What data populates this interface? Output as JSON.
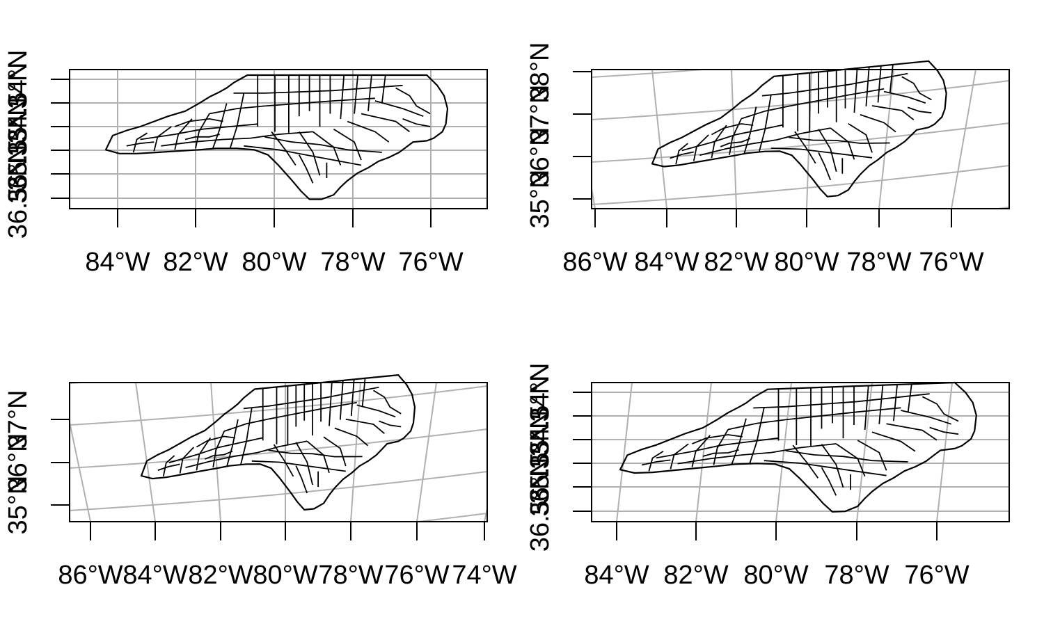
{
  "colors": {
    "grid": "#b0b0b0",
    "frame": "#000000",
    "border": "#000000",
    "background": "#ffffff"
  },
  "panels": [
    {
      "projection": "longlat",
      "x_ticks": [
        "84°W",
        "82°W",
        "80°W",
        "78°W",
        "76°W"
      ],
      "y_ticks": [
        "34°N",
        "34.5°N",
        "35°N",
        "35.5°N",
        "36°N",
        "36.5°N"
      ],
      "graticule": "rectilinear"
    },
    {
      "projection": "conic",
      "x_ticks": [
        "86°W",
        "84°W",
        "82°W",
        "80°W",
        "78°W",
        "76°W"
      ],
      "y_ticks": [
        "35°N",
        "36°N",
        "37°N",
        "38°N"
      ],
      "graticule": "curved"
    },
    {
      "projection": "conic",
      "x_ticks": [
        "86°W",
        "84°W",
        "82°W",
        "80°W",
        "78°W",
        "76°W",
        "74°W"
      ],
      "y_ticks": [
        "35°N",
        "36°N",
        "37°N"
      ],
      "graticule": "curved"
    },
    {
      "projection": "longlat",
      "x_ticks": [
        "84°W",
        "82°W",
        "80°W",
        "78°W",
        "76°W"
      ],
      "y_ticks": [
        "34°N",
        "34.5°N",
        "35°N",
        "35.5°N",
        "36°N",
        "36.5°N"
      ],
      "graticule": "tilted"
    }
  ]
}
